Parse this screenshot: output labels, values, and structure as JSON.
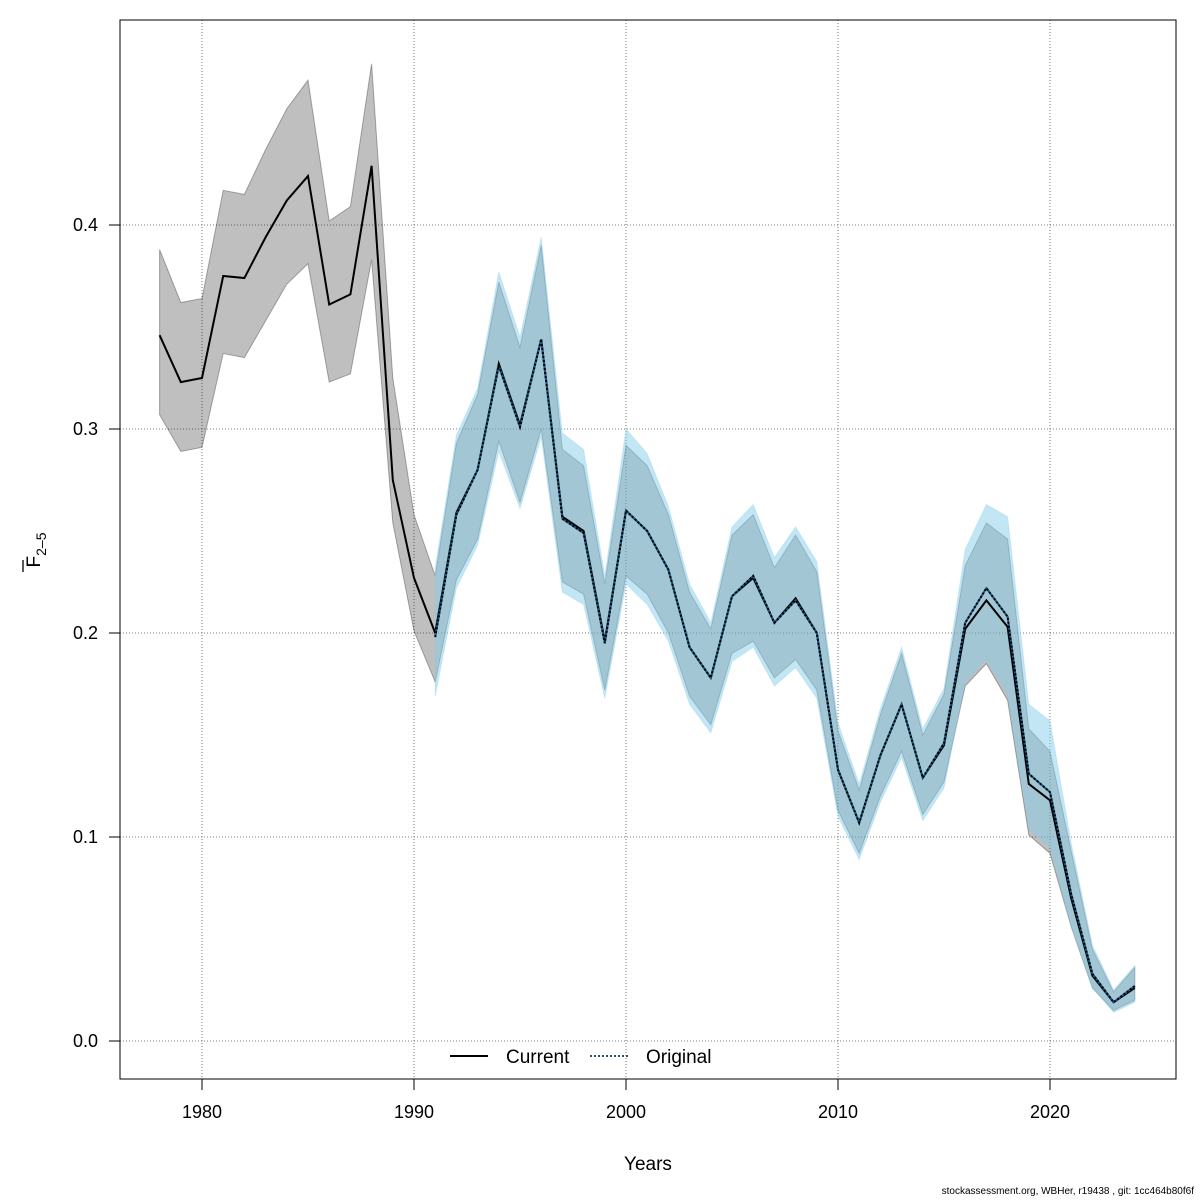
{
  "chart_data": {
    "type": "line",
    "title": "",
    "xlabel": "Years",
    "ylabel": "F",
    "ylabel_sub": "2–5",
    "xlim": [
      1976,
      2026
    ],
    "ylim": [
      -0.019,
      0.5
    ],
    "x_ticks": [
      1980,
      1990,
      2000,
      2010,
      2020
    ],
    "y_ticks": [
      0.0,
      0.1,
      0.2,
      0.3,
      0.4
    ],
    "y_tick_labels": [
      "0.0",
      "0.1",
      "0.2",
      "0.3",
      "0.4"
    ],
    "grid": true,
    "legend_position": "bottom-center",
    "series": [
      {
        "name": "Current",
        "color": "#000000",
        "band_color": "#808080",
        "x": [
          1978,
          1979,
          1980,
          1981,
          1982,
          1983,
          1984,
          1985,
          1986,
          1987,
          1988,
          1989,
          1990,
          1991,
          1992,
          1993,
          1994,
          1995,
          1996,
          1997,
          1998,
          1999,
          2000,
          2001,
          2002,
          2003,
          2004,
          2005,
          2006,
          2007,
          2008,
          2009,
          2010,
          2011,
          2012,
          2013,
          2014,
          2015,
          2016,
          2017,
          2018,
          2019,
          2020,
          2021,
          2022,
          2023,
          2024
        ],
        "y": [
          0.346,
          0.323,
          0.325,
          0.375,
          0.374,
          0.394,
          0.412,
          0.424,
          0.361,
          0.366,
          0.429,
          0.275,
          0.227,
          0.2,
          0.259,
          0.28,
          0.332,
          0.302,
          0.344,
          0.257,
          0.25,
          0.196,
          0.26,
          0.25,
          0.231,
          0.193,
          0.178,
          0.218,
          0.227,
          0.205,
          0.217,
          0.2,
          0.133,
          0.107,
          0.14,
          0.165,
          0.129,
          0.145,
          0.202,
          0.216,
          0.203,
          0.126,
          0.118,
          0.07,
          0.032,
          0.019,
          0.026
        ],
        "upper": [
          0.388,
          0.362,
          0.364,
          0.417,
          0.415,
          0.437,
          0.457,
          0.471,
          0.402,
          0.409,
          0.479,
          0.325,
          0.258,
          0.228,
          0.293,
          0.317,
          0.372,
          0.34,
          0.39,
          0.29,
          0.282,
          0.224,
          0.292,
          0.282,
          0.258,
          0.22,
          0.202,
          0.248,
          0.258,
          0.232,
          0.248,
          0.23,
          0.152,
          0.123,
          0.16,
          0.19,
          0.15,
          0.17,
          0.233,
          0.254,
          0.246,
          0.153,
          0.142,
          0.093,
          0.045,
          0.024,
          0.036
        ],
        "lower": [
          0.307,
          0.289,
          0.291,
          0.337,
          0.335,
          0.353,
          0.371,
          0.381,
          0.323,
          0.327,
          0.383,
          0.254,
          0.201,
          0.176,
          0.226,
          0.246,
          0.294,
          0.264,
          0.3,
          0.225,
          0.219,
          0.172,
          0.228,
          0.219,
          0.2,
          0.169,
          0.155,
          0.19,
          0.196,
          0.178,
          0.187,
          0.172,
          0.113,
          0.092,
          0.12,
          0.142,
          0.111,
          0.127,
          0.174,
          0.185,
          0.167,
          0.101,
          0.092,
          0.056,
          0.026,
          0.015,
          0.02
        ]
      },
      {
        "name": "Original",
        "color": "#1a5a87",
        "band_color": "#87ceeb",
        "x": [
          1991,
          1992,
          1993,
          1994,
          1995,
          1996,
          1997,
          1998,
          1999,
          2000,
          2001,
          2002,
          2003,
          2004,
          2005,
          2006,
          2007,
          2008,
          2009,
          2010,
          2011,
          2012,
          2013,
          2014,
          2015,
          2016,
          2017,
          2018,
          2019,
          2020,
          2021,
          2022,
          2023,
          2024
        ],
        "y": [
          0.198,
          0.258,
          0.28,
          0.331,
          0.301,
          0.344,
          0.256,
          0.249,
          0.195,
          0.26,
          0.25,
          0.231,
          0.193,
          0.178,
          0.218,
          0.228,
          0.205,
          0.216,
          0.2,
          0.133,
          0.107,
          0.14,
          0.165,
          0.129,
          0.146,
          0.205,
          0.222,
          0.208,
          0.131,
          0.122,
          0.072,
          0.033,
          0.019,
          0.027
        ],
        "upper": [
          0.232,
          0.297,
          0.32,
          0.377,
          0.345,
          0.394,
          0.298,
          0.29,
          0.228,
          0.3,
          0.288,
          0.262,
          0.224,
          0.205,
          0.252,
          0.263,
          0.237,
          0.252,
          0.235,
          0.156,
          0.126,
          0.163,
          0.193,
          0.153,
          0.173,
          0.241,
          0.263,
          0.257,
          0.165,
          0.157,
          0.097,
          0.047,
          0.025,
          0.037
        ],
        "lower": [
          0.169,
          0.222,
          0.243,
          0.289,
          0.261,
          0.296,
          0.22,
          0.214,
          0.168,
          0.224,
          0.214,
          0.196,
          0.165,
          0.151,
          0.186,
          0.193,
          0.174,
          0.183,
          0.168,
          0.11,
          0.089,
          0.117,
          0.139,
          0.108,
          0.124,
          0.176,
          0.187,
          0.17,
          0.104,
          0.095,
          0.056,
          0.026,
          0.014,
          0.019
        ]
      }
    ]
  },
  "footer": "stockassessment.org, WBHer, r19438 , git: 1cc464b80f6f"
}
